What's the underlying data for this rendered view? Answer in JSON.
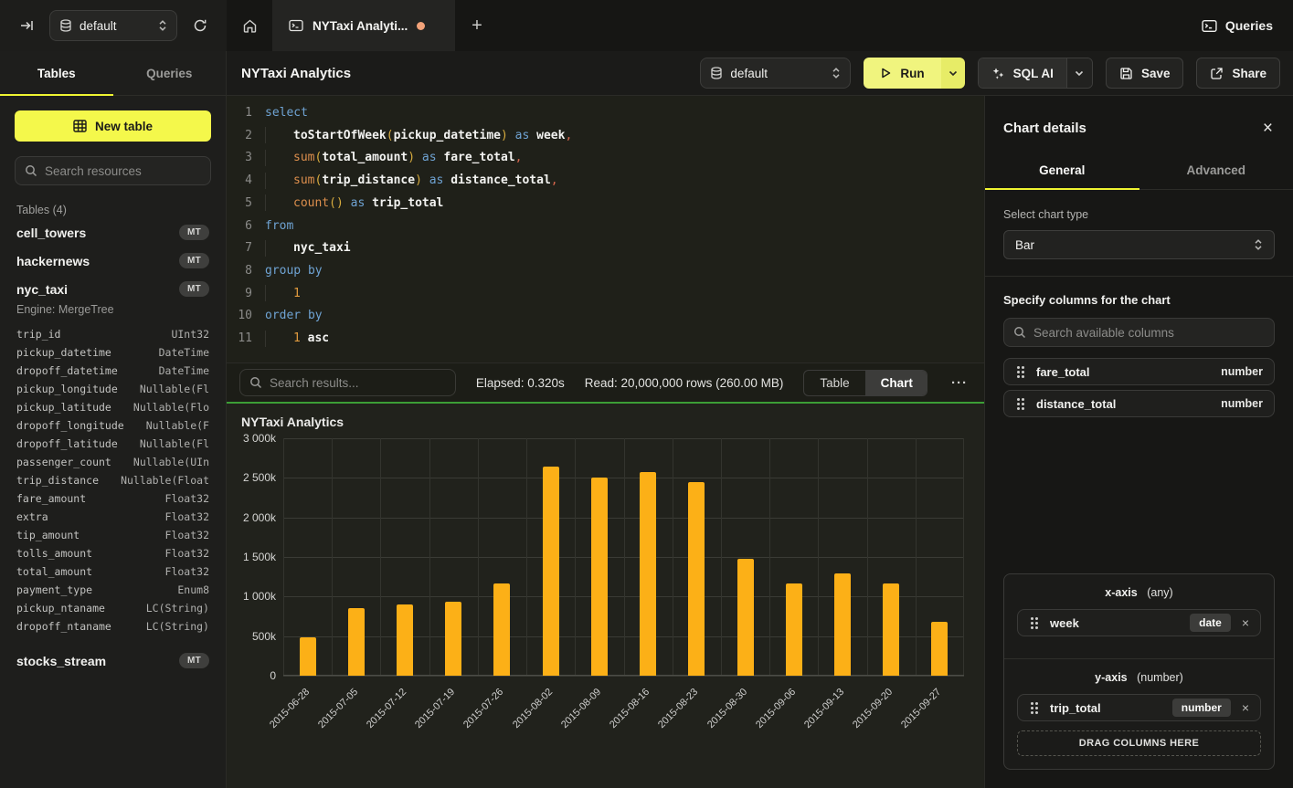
{
  "topbar": {
    "database": "default",
    "tab_title": "NYTaxi Analyti...",
    "queries_label": "Queries"
  },
  "sidebar": {
    "tabs": {
      "tables": "Tables",
      "queries": "Queries"
    },
    "new_table_label": "New table",
    "search_placeholder": "Search resources",
    "section_label": "Tables (4)",
    "tables": {
      "0": {
        "name": "cell_towers",
        "badge": "MT"
      },
      "1": {
        "name": "hackernews",
        "badge": "MT"
      },
      "2": {
        "name": "nyc_taxi",
        "badge": "MT",
        "engine": "Engine: MergeTree"
      },
      "3": {
        "name": "stocks_stream",
        "badge": "MT"
      }
    },
    "columns": [
      {
        "name": "trip_id",
        "type": "UInt32"
      },
      {
        "name": "pickup_datetime",
        "type": "DateTime"
      },
      {
        "name": "dropoff_datetime",
        "type": "DateTime"
      },
      {
        "name": "pickup_longitude",
        "type": "Nullable(Fl"
      },
      {
        "name": "pickup_latitude",
        "type": "Nullable(Flo"
      },
      {
        "name": "dropoff_longitude",
        "type": "Nullable(F"
      },
      {
        "name": "dropoff_latitude",
        "type": "Nullable(Fl"
      },
      {
        "name": "passenger_count",
        "type": "Nullable(UIn"
      },
      {
        "name": "trip_distance",
        "type": "Nullable(Float"
      },
      {
        "name": "fare_amount",
        "type": "Float32"
      },
      {
        "name": "extra",
        "type": "Float32"
      },
      {
        "name": "tip_amount",
        "type": "Float32"
      },
      {
        "name": "tolls_amount",
        "type": "Float32"
      },
      {
        "name": "total_amount",
        "type": "Float32"
      },
      {
        "name": "payment_type",
        "type": "Enum8"
      },
      {
        "name": "pickup_ntaname",
        "type": "LC(String)"
      },
      {
        "name": "dropoff_ntaname",
        "type": "LC(String)"
      }
    ]
  },
  "main": {
    "title": "NYTaxi Analytics",
    "toolbar": {
      "database": "default",
      "run_label": "Run",
      "sql_ai_label": "SQL AI",
      "save_label": "Save",
      "share_label": "Share"
    },
    "editor_lines": [
      {
        "n": "1",
        "t": [
          [
            "kw",
            "select"
          ]
        ]
      },
      {
        "n": "2",
        "t": [
          [
            "ind",
            ""
          ],
          [
            "id",
            "toStartOfWeek"
          ],
          [
            "par",
            "("
          ],
          [
            "id",
            "pickup_datetime"
          ],
          [
            "par",
            ")"
          ],
          [
            "kw",
            " as "
          ],
          [
            "id",
            "week"
          ],
          [
            "pun",
            ","
          ]
        ]
      },
      {
        "n": "3",
        "t": [
          [
            "ind",
            ""
          ],
          [
            "fn",
            "sum"
          ],
          [
            "par",
            "("
          ],
          [
            "id",
            "total_amount"
          ],
          [
            "par",
            ")"
          ],
          [
            "kw",
            " as "
          ],
          [
            "id",
            "fare_total"
          ],
          [
            "pun",
            ","
          ]
        ]
      },
      {
        "n": "4",
        "t": [
          [
            "ind",
            ""
          ],
          [
            "fn",
            "sum"
          ],
          [
            "par",
            "("
          ],
          [
            "id",
            "trip_distance"
          ],
          [
            "par",
            ")"
          ],
          [
            "kw",
            " as "
          ],
          [
            "id",
            "distance_total"
          ],
          [
            "pun",
            ","
          ]
        ]
      },
      {
        "n": "5",
        "t": [
          [
            "ind",
            ""
          ],
          [
            "fn",
            "count"
          ],
          [
            "par",
            "()"
          ],
          [
            "kw",
            " as "
          ],
          [
            "id",
            "trip_total"
          ]
        ]
      },
      {
        "n": "6",
        "t": [
          [
            "kw",
            "from"
          ]
        ]
      },
      {
        "n": "7",
        "t": [
          [
            "ind",
            ""
          ],
          [
            "id",
            "nyc_taxi"
          ]
        ]
      },
      {
        "n": "8",
        "t": [
          [
            "kw",
            "group by"
          ]
        ]
      },
      {
        "n": "9",
        "t": [
          [
            "ind",
            ""
          ],
          [
            "num",
            "1"
          ]
        ]
      },
      {
        "n": "10",
        "t": [
          [
            "kw",
            "order by"
          ]
        ]
      },
      {
        "n": "11",
        "t": [
          [
            "ind",
            ""
          ],
          [
            "num",
            "1"
          ],
          [
            "id",
            " asc"
          ]
        ]
      }
    ],
    "results": {
      "search_placeholder": "Search results...",
      "elapsed": "Elapsed: 0.320s",
      "read": "Read: 20,000,000 rows (260.00 MB)",
      "toggle_table": "Table",
      "toggle_chart": "Chart",
      "more": "···"
    }
  },
  "chart_data": {
    "type": "bar",
    "title": "NYTaxi Analytics",
    "series_name": "trip_total",
    "categories": [
      "2015-06-28",
      "2015-07-05",
      "2015-07-12",
      "2015-07-19",
      "2015-07-26",
      "2015-08-02",
      "2015-08-09",
      "2015-08-16",
      "2015-08-23",
      "2015-08-30",
      "2015-09-06",
      "2015-09-13",
      "2015-09-20",
      "2015-09-27"
    ],
    "values": [
      480000,
      850000,
      900000,
      930000,
      1160000,
      2640000,
      2500000,
      2570000,
      2450000,
      1480000,
      1170000,
      1290000,
      1170000,
      680000
    ],
    "ylim": [
      0,
      3000000
    ],
    "ytick_labels": [
      "3 000k",
      "2 500k",
      "2 000k",
      "1 500k",
      "1 000k",
      "500k",
      "0"
    ],
    "bar_color": "#fcb017",
    "grid": "on",
    "xlabel": "",
    "ylabel": ""
  },
  "panel": {
    "title": "Chart details",
    "tabs": {
      "general": "General",
      "advanced": "Advanced"
    },
    "chart_type_label": "Select chart type",
    "chart_type_value": "Bar",
    "columns_label": "Specify columns for the chart",
    "columns_search_placeholder": "Search available columns",
    "available_columns": {
      "0": {
        "name": "fare_total",
        "type": "number"
      },
      "1": {
        "name": "distance_total",
        "type": "number"
      }
    },
    "x_axis": {
      "label": "x-axis",
      "hint": "(any)",
      "chip_name": "week",
      "chip_badge": "date"
    },
    "y_axis": {
      "label": "y-axis",
      "hint": "(number)",
      "chip_name": "trip_total",
      "chip_badge": "number"
    },
    "drop_label": "DRAG COLUMNS HERE"
  }
}
